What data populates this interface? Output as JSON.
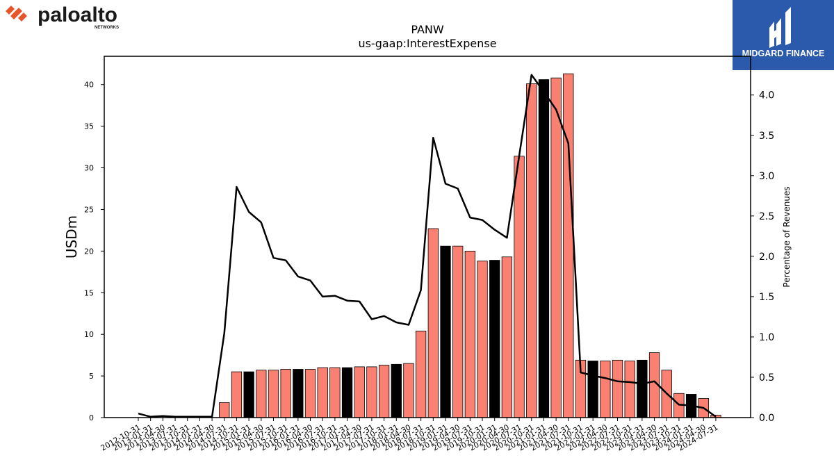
{
  "brand": {
    "left_logo_text": "paloalto",
    "left_logo_sub": "NETWORKS",
    "right_logo_text": "MIDGARD FINANCE"
  },
  "colors": {
    "bar_normal": "#fa8072",
    "bar_highlight": "#000000",
    "line": "#000000",
    "logo_orange": "#e8552a",
    "midgard_blue": "#2b5aad"
  },
  "chart_data": {
    "type": "bar",
    "title": "PANW",
    "subtitle": "us-gaap:InterestExpense",
    "ylabel": "USDm",
    "y2label": "Percentage of Revenues",
    "ylim": [
      0,
      43.4
    ],
    "y2lim": [
      0,
      4.48
    ],
    "yticks": [
      0,
      5,
      10,
      15,
      20,
      25,
      30,
      35,
      40
    ],
    "y2ticks": [
      "0.0",
      "0.5",
      "1.0",
      "1.5",
      "2.0",
      "2.5",
      "3.0",
      "3.5",
      "4.0"
    ],
    "categories": [
      "2012-10-31",
      "2013-01-31",
      "2013-04-30",
      "2013-07-31",
      "2013-10-31",
      "2014-01-31",
      "2014-04-30",
      "2014-07-31",
      "2014-10-31",
      "2015-01-31",
      "2015-04-30",
      "2015-07-31",
      "2015-10-31",
      "2016-01-31",
      "2016-04-30",
      "2016-07-31",
      "2016-10-31",
      "2017-01-31",
      "2017-04-30",
      "2017-07-31",
      "2017-10-31",
      "2018-01-31",
      "2018-04-30",
      "2018-07-31",
      "2018-10-31",
      "2019-01-31",
      "2019-04-30",
      "2019-07-31",
      "2019-10-31",
      "2020-01-31",
      "2020-04-30",
      "2020-07-31",
      "2020-10-31",
      "2021-01-31",
      "2021-04-30",
      "2021-07-31",
      "2021-10-31",
      "2022-01-31",
      "2022-04-30",
      "2022-07-31",
      "2022-10-31",
      "2023-01-31",
      "2023-04-30",
      "2023-07-31",
      "2023-10-31",
      "2024-01-31",
      "2024-04-30",
      "2024-07-31"
    ],
    "series": [
      {
        "type": "bar",
        "axis": "left",
        "values": [
          0,
          0,
          0,
          0,
          0,
          0,
          0,
          1.8,
          5.5,
          5.5,
          5.7,
          5.7,
          5.8,
          5.8,
          5.8,
          6.0,
          6.0,
          6.0,
          6.1,
          6.1,
          6.3,
          6.4,
          6.5,
          10.4,
          22.7,
          20.6,
          20.6,
          20.0,
          18.8,
          18.9,
          19.3,
          31.4,
          40.1,
          40.6,
          40.8,
          41.3,
          6.9,
          6.8,
          6.8,
          6.9,
          6.8,
          6.9,
          7.8,
          5.7,
          2.9,
          2.8,
          2.3,
          0.3
        ],
        "highlight": [
          false,
          false,
          false,
          false,
          false,
          false,
          false,
          false,
          false,
          true,
          false,
          false,
          false,
          true,
          false,
          false,
          false,
          true,
          false,
          false,
          false,
          true,
          false,
          false,
          false,
          true,
          false,
          false,
          false,
          true,
          false,
          false,
          false,
          true,
          false,
          false,
          false,
          true,
          false,
          false,
          false,
          true,
          false,
          false,
          false,
          true,
          false,
          false
        ]
      },
      {
        "type": "line",
        "axis": "right",
        "values": [
          0.05,
          0.01,
          0.02,
          0.01,
          0.01,
          0.01,
          0.01,
          1.05,
          2.86,
          2.55,
          2.42,
          1.98,
          1.95,
          1.75,
          1.7,
          1.5,
          1.51,
          1.45,
          1.44,
          1.22,
          1.26,
          1.18,
          1.15,
          1.58,
          3.47,
          2.9,
          2.84,
          2.48,
          2.45,
          2.33,
          2.23,
          3.25,
          4.25,
          4.04,
          3.82,
          3.4,
          0.56,
          0.52,
          0.49,
          0.45,
          0.44,
          0.42,
          0.45,
          0.3,
          0.16,
          0.15,
          0.12,
          0.01
        ]
      }
    ]
  }
}
